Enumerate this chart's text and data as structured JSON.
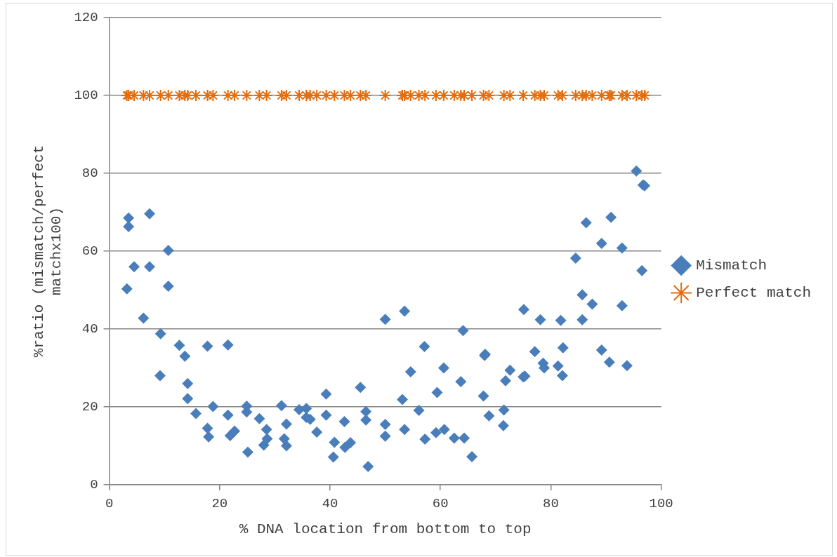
{
  "chart_data": {
    "type": "scatter",
    "xlabel": "% DNA location from bottom to top",
    "ylabel": "%ratio (mismatch/perfect matchx100)",
    "xlim": [
      0,
      100
    ],
    "ylim": [
      0,
      120
    ],
    "xticks": [
      0,
      20,
      40,
      60,
      80,
      100
    ],
    "yticks": [
      0,
      20,
      40,
      60,
      80,
      100,
      120
    ],
    "grid": "y",
    "legend": "right",
    "series": [
      {
        "name": "Mismatch",
        "color": "#4a7ebb",
        "marker": "diamond",
        "x": [
          3.2,
          3.5,
          3.5,
          4.5,
          6.2,
          7.3,
          7.3,
          9.3,
          9.2,
          10.7,
          10.7,
          12.7,
          13.7,
          14.2,
          14.2,
          15.7,
          17.8,
          17.8,
          18,
          18.8,
          21.5,
          21.5,
          21.9,
          22.7,
          24.9,
          24.9,
          25.1,
          27.2,
          28,
          28.5,
          28.6,
          31.2,
          31.7,
          32.1,
          32.1,
          34.4,
          35.7,
          35.7,
          36.4,
          37.6,
          39.3,
          39.3,
          40.6,
          40.8,
          42.6,
          42.7,
          43.7,
          45.5,
          46.5,
          46.5,
          46.9,
          50,
          50,
          50,
          53.1,
          53.5,
          53.5,
          54.6,
          56.1,
          57.2,
          57.1,
          59.2,
          59.4,
          60.6,
          60.7,
          62.5,
          63.7,
          64.1,
          64.3,
          65.7,
          67.8,
          68,
          68.1,
          68.8,
          71.4,
          71.5,
          71.8,
          72.6,
          75,
          75.1,
          75.3,
          77.1,
          78.1,
          78.6,
          78.8,
          81.3,
          81.8,
          82.1,
          82.2,
          84.5,
          85.7,
          85.7,
          86.4,
          87.5,
          89.2,
          89.2,
          90.6,
          90.9,
          92.9,
          92.9,
          93.8,
          95.5,
          96.5,
          96.7,
          97
        ],
        "values": [
          50.3,
          68.5,
          66.3,
          56,
          42.8,
          69.6,
          56,
          38.8,
          28,
          60.2,
          51,
          35.8,
          33,
          26,
          22.1,
          18.3,
          35.6,
          14.5,
          12.3,
          20.1,
          35.9,
          17.9,
          12.6,
          13.8,
          20.2,
          18.7,
          8.4,
          17,
          10.2,
          14.2,
          11.8,
          20.3,
          11.8,
          15.6,
          10,
          19.3,
          19.6,
          17.3,
          16.8,
          13.5,
          23.3,
          17.9,
          7.1,
          10.9,
          16.2,
          9.6,
          10.8,
          25,
          18.8,
          16.6,
          4.7,
          42.5,
          15.5,
          12.5,
          21.9,
          44.6,
          14.2,
          29,
          19.1,
          11.7,
          35.5,
          13.4,
          23.7,
          30,
          14.2,
          12,
          26.5,
          39.6,
          12,
          7.2,
          22.8,
          33.2,
          33.5,
          17.7,
          15.2,
          19.2,
          26.7,
          29.4,
          27.7,
          45,
          27.9,
          34.2,
          42.4,
          31.2,
          30,
          30.5,
          42.2,
          28,
          35.2,
          58.2,
          48.8,
          42.4,
          67.3,
          46.4,
          62,
          34.6,
          31.5,
          68.7,
          60.8,
          46,
          30.6,
          80.6,
          55,
          77,
          76.8
        ]
      },
      {
        "name": "Perfect match",
        "color": "#e46c0a",
        "marker": "cross",
        "x": [
          3.2,
          3.5,
          4.5,
          6.2,
          7.3,
          9.3,
          10.7,
          12.7,
          13.7,
          14.2,
          15.7,
          17.8,
          18.8,
          21.5,
          22.7,
          24.9,
          27.2,
          28.5,
          31.2,
          32.1,
          34.4,
          35.7,
          36.4,
          37.6,
          39.3,
          40.8,
          42.6,
          43.7,
          45.5,
          46.5,
          50,
          53.1,
          53.5,
          54.6,
          56.1,
          57.2,
          59.2,
          60.6,
          62.5,
          63.7,
          64.3,
          65.7,
          67.8,
          68.8,
          71.5,
          72.6,
          75,
          77.1,
          78.1,
          78.8,
          81.3,
          82.1,
          84.5,
          85.7,
          86.4,
          87.5,
          89.2,
          90.6,
          90.9,
          92.9,
          93.8,
          95.5,
          96.5,
          97
        ],
        "values": [
          100,
          100,
          100,
          100,
          100,
          100,
          100,
          100,
          100,
          100,
          100,
          100,
          100,
          100,
          100,
          100,
          100,
          100,
          100,
          100,
          100,
          100,
          100,
          100,
          100,
          100,
          100,
          100,
          100,
          100,
          100,
          100,
          100,
          100,
          100,
          100,
          100,
          100,
          100,
          100,
          100,
          100,
          100,
          100,
          100,
          100,
          100,
          100,
          100,
          100,
          100,
          100,
          100,
          100,
          100,
          100,
          100,
          100,
          100,
          100,
          100,
          100,
          100,
          100
        ]
      }
    ]
  }
}
